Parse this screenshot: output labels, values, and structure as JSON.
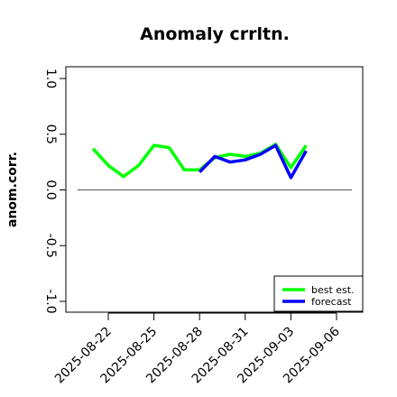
{
  "chart_data": {
    "type": "line",
    "title": "Anomaly crrltn.",
    "xlabel": "",
    "ylabel": "anom.corr.",
    "ylim": [
      -1.0,
      1.0
    ],
    "y_ticks": [
      "-1.0",
      "-0.5",
      "0.0",
      "0.5",
      "1.0"
    ],
    "x_ticks": [
      "2025-08-22",
      "2025-08-25",
      "2025-08-28",
      "2025-08-31",
      "2025-09-03",
      "2025-09-06"
    ],
    "highlighted_tick": "2025-08-28",
    "highlight_color": "#228b22",
    "reference_line": 0.0,
    "grid": false,
    "legend_position": "bottom-right",
    "series": [
      {
        "name": "best est.",
        "color": "#00ff00",
        "x": [
          "2025-08-21",
          "2025-08-22",
          "2025-08-23",
          "2025-08-24",
          "2025-08-25",
          "2025-08-26",
          "2025-08-27",
          "2025-08-28",
          "2025-08-29",
          "2025-08-30",
          "2025-08-31",
          "2025-09-01",
          "2025-09-02",
          "2025-09-03",
          "2025-09-04"
        ],
        "values": [
          0.37,
          0.22,
          0.12,
          0.22,
          0.4,
          0.38,
          0.18,
          0.18,
          0.29,
          0.32,
          0.3,
          0.33,
          0.41,
          0.2,
          0.4
        ]
      },
      {
        "name": "forecast",
        "color": "#0000ff",
        "x": [
          "2025-08-28",
          "2025-08-29",
          "2025-08-30",
          "2025-08-31",
          "2025-09-01",
          "2025-09-02",
          "2025-09-03",
          "2025-09-04"
        ],
        "values": [
          0.16,
          0.3,
          0.25,
          0.27,
          0.32,
          0.4,
          0.11,
          0.35
        ]
      }
    ]
  }
}
